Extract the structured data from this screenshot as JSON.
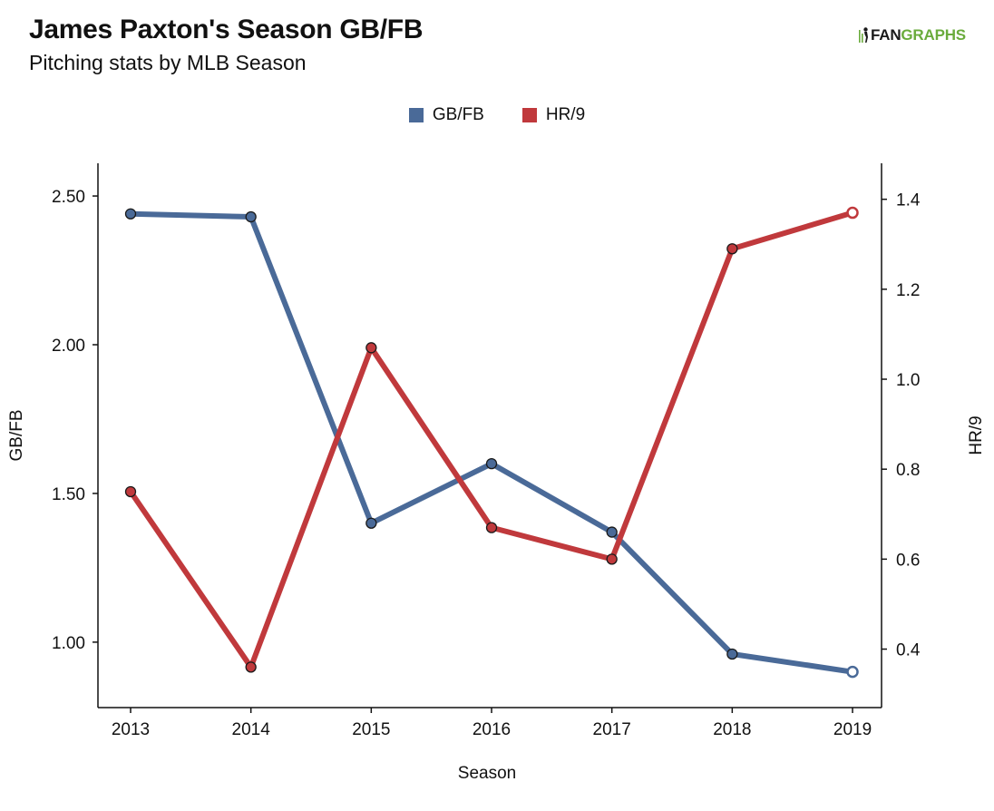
{
  "header": {
    "title": "James Paxton's Season GB/FB",
    "subtitle": "Pitching stats by MLB Season"
  },
  "logo": {
    "text_a": "FAN",
    "text_b": "GRAPHS",
    "color_a": "#1a1a1a",
    "color_b": "#6aab3c"
  },
  "colors": {
    "gbfb": "#4a6a98",
    "hr9": "#c0393c"
  },
  "chart_data": {
    "type": "line",
    "title": "James Paxton's Season GB/FB",
    "subtitle": "Pitching stats by MLB Season",
    "xlabel": "Season",
    "ylabel": "GB/FB",
    "y2label": "HR/9",
    "categories": [
      "2013",
      "2014",
      "2015",
      "2016",
      "2017",
      "2018",
      "2019"
    ],
    "ylim": [
      0.78,
      2.61
    ],
    "y2lim": [
      0.27,
      1.48
    ],
    "yticks": [
      "1.00",
      "1.50",
      "2.00",
      "2.50"
    ],
    "y2ticks": [
      "0.4",
      "0.6",
      "0.8",
      "1.0",
      "1.2",
      "1.4"
    ],
    "legend_position": "top-center",
    "grid": false,
    "series": [
      {
        "name": "GB/FB",
        "axis": "left",
        "color": "#4a6a98",
        "values": [
          2.44,
          2.43,
          1.4,
          1.6,
          1.37,
          0.96,
          0.9
        ],
        "last_point_open": true
      },
      {
        "name": "HR/9",
        "axis": "right",
        "color": "#c0393c",
        "values": [
          0.75,
          0.36,
          1.07,
          0.67,
          0.6,
          1.29,
          1.37
        ],
        "last_point_open": true
      }
    ]
  }
}
